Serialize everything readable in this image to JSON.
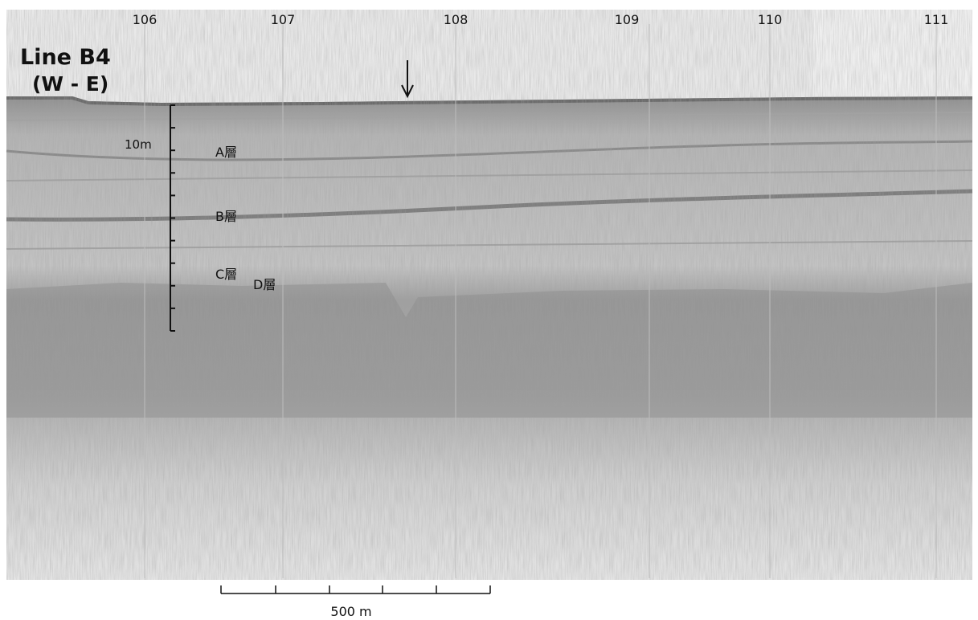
{
  "title": "Line B4",
  "subtitle": "(W - E)",
  "fix_marks": [
    "106",
    "107",
    "108",
    "109",
    "110",
    "111"
  ],
  "layers": [
    "A層",
    "B層",
    "C層",
    "D層"
  ],
  "vertical_scale": "10m",
  "horizontal_scale": "500 m"
}
